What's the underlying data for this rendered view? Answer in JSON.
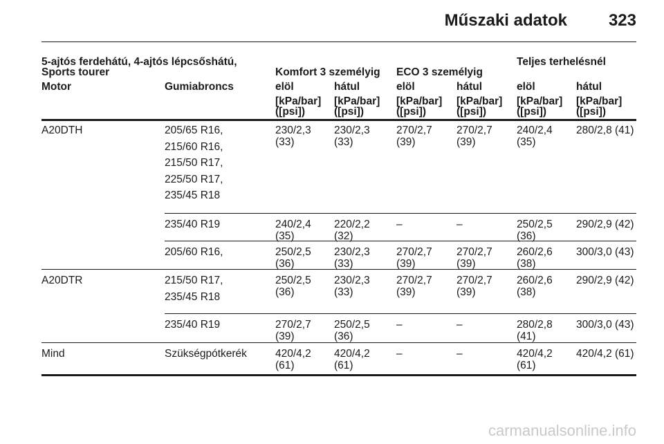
{
  "page": {
    "title": "Műszaki adatok",
    "number": "323",
    "watermark": "carmanualsonline.info"
  },
  "table": {
    "caption": "5-ajtós ferdehátú, 4-ajtós lépcsőshátú, Sports tourer",
    "groups": [
      "Komfort 3 személyig",
      "ECO 3 személyig",
      "Teljes terhelésnél"
    ],
    "columns": [
      "Motor",
      "Gumiabroncs",
      "elöl",
      "hátul",
      "elöl",
      "hátul",
      "elöl",
      "hátul"
    ],
    "unit": "[kPa/bar] ([psi])",
    "rows": [
      {
        "motor": "A20DTH",
        "tyres": [
          "205/65 R16,",
          "215/60 R16,",
          "215/50 R17,",
          "225/50 R17,",
          "235/45 R18"
        ],
        "values": [
          "230/2,3 (33)",
          "230/2,3 (33)",
          "270/2,7 (39)",
          "270/2,7 (39)",
          "240/2,4 (35)",
          "280/2,8 (41)"
        ]
      },
      {
        "motor": "",
        "tyres": [
          "235/40 R19"
        ],
        "values": [
          "240/2,4 (35)",
          "220/2,2 (32)",
          "–",
          "–",
          "250/2,5 (36)",
          "290/2,9 (42)"
        ]
      },
      {
        "motor": "",
        "tyres": [
          "205/60 R16,"
        ],
        "values": [
          "250/2,5 (36)",
          "230/2,3 (33)",
          "270/2,7 (39)",
          "270/2,7 (39)",
          "260/2,6 (38)",
          "300/3,0 (43)"
        ]
      },
      {
        "motor": "A20DTR",
        "tyres": [
          "215/50 R17,",
          "235/45 R18"
        ],
        "values": [
          "250/2,5 (36)",
          "230/2,3 (33)",
          "270/2,7 (39)",
          "270/2,7 (39)",
          "260/2,6 (38)",
          "290/2,9 (42)"
        ]
      },
      {
        "motor": "",
        "tyres": [
          "235/40 R19"
        ],
        "values": [
          "270/2,7 (39)",
          "250/2,5 (36)",
          "–",
          "–",
          "280/2,8 (41)",
          "300/3,0 (43)"
        ]
      },
      {
        "motor": "Mind",
        "tyres": [
          "Szükségpótkerék"
        ],
        "values": [
          "420/4,2 (61)",
          "420/4,2 (61)",
          "–",
          "–",
          "420/4,2 (61)",
          "420/4,2 (61)"
        ]
      }
    ]
  }
}
